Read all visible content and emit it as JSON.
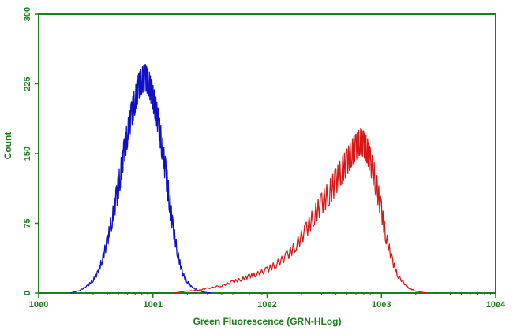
{
  "chart_data": {
    "type": "line",
    "title": "",
    "xlabel": "Green Fluorescence (GRN-HLog)",
    "ylabel": "Count",
    "x_scale": "log",
    "xlim": [
      1,
      10000
    ],
    "ylim": [
      0,
      300
    ],
    "x_ticks": [
      {
        "value": 1,
        "label": "10e0"
      },
      {
        "value": 10,
        "label": "10e1"
      },
      {
        "value": 100,
        "label": "10e2"
      },
      {
        "value": 1000,
        "label": "10e3"
      },
      {
        "value": 10000,
        "label": "10e4"
      }
    ],
    "y_ticks": [
      {
        "value": 0,
        "label": "0"
      },
      {
        "value": 75,
        "label": "75"
      },
      {
        "value": 150,
        "label": "150"
      },
      {
        "value": 225,
        "label": "225"
      },
      {
        "value": 300,
        "label": "300"
      }
    ],
    "grid": false,
    "legend": "none",
    "colors": {
      "axis": "#1a7f1a",
      "frame": "#1a7f1a",
      "text": "#1a7f1a"
    },
    "series": [
      {
        "color": "#1010c8",
        "x": [
          1.9,
          2.3,
          2.7,
          3.0,
          3.3,
          3.6,
          4.0,
          4.4,
          4.8,
          5.2,
          5.6,
          6.0,
          6.5,
          7.0,
          7.5,
          8.0,
          8.6,
          9.2,
          9.8,
          10.5,
          11.2,
          12.0,
          13.0,
          14.0,
          15.0,
          16.5,
          18.0,
          20.0,
          22.0,
          25.0,
          28.0,
          32.0
        ],
        "y": [
          0,
          3,
          8,
          14,
          22,
          36,
          56,
          80,
          103,
          128,
          152,
          172,
          192,
          208,
          222,
          229,
          232,
          226,
          214,
          200,
          182,
          158,
          128,
          98,
          70,
          42,
          22,
          12,
          6,
          3,
          1,
          0
        ]
      },
      {
        "color": "#d81818",
        "x": [
          15,
          20,
          25,
          30,
          40,
          50,
          60,
          70,
          80,
          100,
          120,
          150,
          180,
          220,
          260,
          300,
          350,
          400,
          450,
          500,
          550,
          600,
          650,
          700,
          750,
          800,
          900,
          1000,
          1100,
          1250,
          1400,
          1700,
          2000,
          2500
        ],
        "y": [
          0,
          2,
          3,
          5,
          8,
          12,
          15,
          18,
          20,
          25,
          31,
          40,
          52,
          68,
          84,
          96,
          108,
          120,
          132,
          141,
          151,
          157,
          163,
          160,
          154,
          142,
          118,
          88,
          60,
          34,
          18,
          6,
          2,
          0
        ]
      }
    ]
  }
}
